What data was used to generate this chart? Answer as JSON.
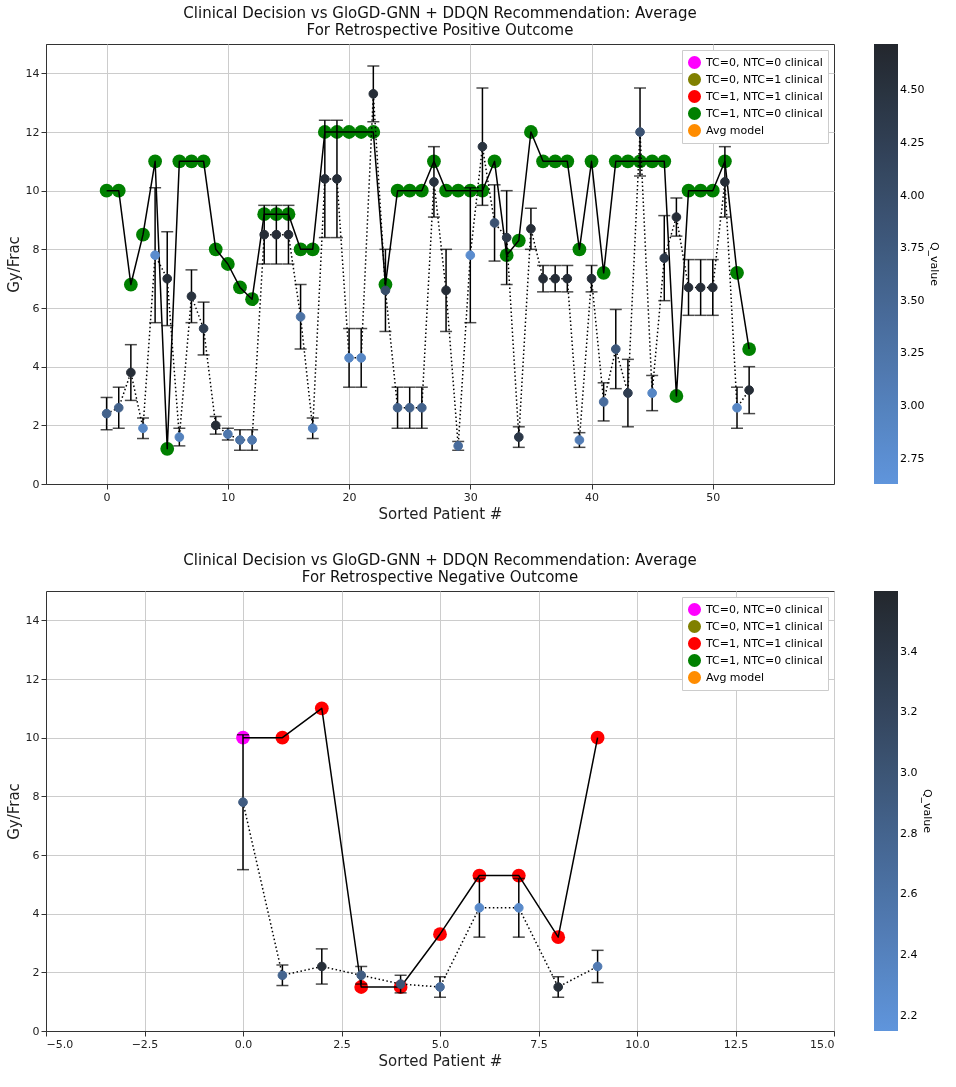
{
  "chart_data": [
    {
      "type": "scatter",
      "title": "Clinical Decision vs GloGD-GNN + DDQN Recommendation: Average\nFor Retrospective Positive Outcome",
      "xlabel": "Sorted Patient #",
      "ylabel": "Gy/Frac",
      "clabel": "Q_value",
      "x": [
        0,
        1,
        2,
        3,
        4,
        5,
        6,
        7,
        8,
        9,
        10,
        11,
        12,
        13,
        14,
        15,
        16,
        17,
        18,
        19,
        20,
        21,
        22,
        23,
        24,
        25,
        26,
        27,
        28,
        29,
        30,
        31,
        32,
        33,
        34,
        35,
        36,
        37,
        38,
        39,
        40,
        41,
        42,
        43,
        44,
        45,
        46,
        47,
        48,
        49,
        50,
        51,
        52,
        53
      ],
      "xlim": [
        -5,
        60
      ],
      "xticks": [
        0,
        10,
        20,
        30,
        40,
        50
      ],
      "ylim": [
        0,
        15
      ],
      "yticks": [
        0,
        2,
        4,
        6,
        8,
        10,
        12,
        14
      ],
      "clim": [
        2.63,
        4.72
      ],
      "cticks": [
        {
          "value": 2.75,
          "label": "2.75"
        },
        {
          "value": 3,
          "label": "3.00"
        },
        {
          "value": 3.25,
          "label": "3.25"
        },
        {
          "value": 3.5,
          "label": "3.50"
        },
        {
          "value": 3.75,
          "label": "3.75"
        },
        {
          "value": 4,
          "label": "4.00"
        },
        {
          "value": 4.25,
          "label": "4.25"
        },
        {
          "value": 4.5,
          "label": "4.50"
        }
      ],
      "grid": true,
      "legend": "top right",
      "series": [
        {
          "type": "line",
          "color": "#000000",
          "marker": "none",
          "line_style": "solid",
          "values": [
            10,
            10,
            6.8,
            8.5,
            11,
            1.2,
            11,
            11,
            11,
            8,
            7.5,
            6.7,
            6.3,
            9.2,
            9.2,
            9.2,
            8,
            8,
            12,
            12,
            12,
            12,
            12,
            6.8,
            10,
            10,
            10,
            11,
            10,
            10,
            10,
            10,
            11,
            7.8,
            8.3,
            12,
            11,
            11,
            11,
            8,
            11,
            7.2,
            11,
            11,
            11,
            11,
            11,
            3,
            10,
            10,
            10,
            11,
            7.2,
            4.6
          ]
        },
        {
          "name": "TC=0, NTC=0 clinical",
          "color": "#ff00ff",
          "marker": "circle",
          "values": [
            null,
            null,
            null,
            null,
            null,
            null,
            null,
            null,
            null,
            null,
            null,
            null,
            null,
            null,
            null,
            null,
            null,
            null,
            null,
            null,
            null,
            null,
            null,
            null,
            null,
            null,
            null,
            null,
            null,
            null,
            null,
            null,
            null,
            null,
            null,
            null,
            null,
            null,
            null,
            null,
            null,
            null,
            null,
            null,
            null,
            null,
            null,
            null,
            null,
            null,
            null,
            null,
            null,
            null
          ]
        },
        {
          "name": "TC=0, NTC=1 clinical",
          "color": "#808000",
          "marker": "circle",
          "values": [
            null,
            null,
            null,
            null,
            null,
            null,
            null,
            null,
            null,
            null,
            null,
            null,
            null,
            null,
            null,
            null,
            null,
            null,
            null,
            null,
            null,
            null,
            null,
            null,
            null,
            null,
            null,
            null,
            null,
            null,
            null,
            null,
            null,
            null,
            null,
            null,
            null,
            null,
            null,
            null,
            null,
            null,
            null,
            null,
            null,
            null,
            null,
            null,
            null,
            null,
            null,
            null,
            null,
            null
          ]
        },
        {
          "name": "TC=1, NTC=1 clinical",
          "color": "#ff0000",
          "marker": "circle",
          "values": [
            null,
            null,
            null,
            null,
            null,
            null,
            null,
            null,
            null,
            null,
            null,
            null,
            null,
            null,
            null,
            null,
            null,
            null,
            null,
            null,
            null,
            null,
            null,
            null,
            null,
            null,
            null,
            null,
            null,
            null,
            null,
            null,
            null,
            null,
            null,
            null,
            null,
            null,
            null,
            null,
            null,
            null,
            null,
            null,
            null,
            null,
            null,
            null,
            null,
            null,
            null,
            null,
            null,
            null
          ]
        },
        {
          "name": "TC=1, NTC=0 clinical",
          "color": "#008000",
          "marker": "circle",
          "values": [
            10,
            10,
            6.8,
            8.5,
            11,
            1.2,
            11,
            11,
            11,
            8,
            7.5,
            6.7,
            6.3,
            9.2,
            9.2,
            9.2,
            8,
            8,
            12,
            12,
            12,
            12,
            12,
            6.8,
            10,
            10,
            10,
            11,
            10,
            10,
            10,
            10,
            11,
            7.8,
            8.3,
            12,
            11,
            11,
            11,
            8,
            11,
            7.2,
            11,
            11,
            11,
            11,
            11,
            3,
            10,
            10,
            10,
            11,
            7.2,
            4.6
          ]
        },
        {
          "name": "Avg model",
          "color": "#ff8c00",
          "marker": "circle",
          "values": [
            null,
            null,
            null,
            null,
            null,
            null,
            null,
            null,
            null,
            null,
            null,
            null,
            null,
            null,
            null,
            null,
            null,
            null,
            null,
            null,
            null,
            null,
            null,
            null,
            null,
            null,
            null,
            null,
            null,
            null,
            null,
            null,
            null,
            null,
            null,
            null,
            null,
            null,
            null,
            null,
            null,
            null,
            null,
            null,
            null,
            null,
            null,
            null,
            null,
            null,
            null,
            null,
            null,
            null
          ]
        },
        {
          "type": "line",
          "color": "#000000",
          "marker": "none",
          "line_style": "dotted",
          "values": [
            2.4,
            2.6,
            3.8,
            1.9,
            7.8,
            7.0,
            1.6,
            6.4,
            5.3,
            2.0,
            1.7,
            1.5,
            1.5,
            8.5,
            8.5,
            8.5,
            5.7,
            1.9,
            10.4,
            10.4,
            4.3,
            4.3,
            13.3,
            6.6,
            2.6,
            2.6,
            2.6,
            10.3,
            6.6,
            1.3,
            7.8,
            11.5,
            8.9,
            8.4,
            1.6,
            8.7,
            7.0,
            7.0,
            7.0,
            1.5,
            7.0,
            2.8,
            4.6,
            3.1,
            12.0,
            3.1,
            7.7,
            9.1,
            6.7,
            6.7,
            6.7,
            10.3,
            2.6,
            3.2
          ]
        },
        {
          "type": "scatter",
          "marker": "circle",
          "values": [
            2.4,
            2.6,
            3.8,
            1.9,
            7.8,
            7.0,
            1.6,
            6.4,
            5.3,
            2.0,
            1.7,
            1.5,
            1.5,
            8.5,
            8.5,
            8.5,
            5.7,
            1.9,
            10.4,
            10.4,
            4.3,
            4.3,
            13.3,
            6.6,
            2.6,
            2.6,
            2.6,
            10.3,
            6.6,
            1.3,
            7.8,
            11.5,
            8.9,
            8.4,
            1.6,
            8.7,
            7.0,
            7.0,
            7.0,
            1.5,
            7.0,
            2.8,
            4.6,
            3.1,
            12.0,
            3.1,
            7.7,
            9.1,
            6.7,
            6.7,
            6.7,
            10.3,
            2.6,
            3.2
          ],
          "errors": [
            0.55,
            0.7,
            0.95,
            0.35,
            2.3,
            1.6,
            0.3,
            0.9,
            0.9,
            0.3,
            0.2,
            0.35,
            0.35,
            1,
            1,
            1,
            1.1,
            0.35,
            2,
            2,
            1,
            1,
            0.95,
            1.4,
            0.7,
            0.7,
            0.7,
            1.2,
            1.4,
            0.15,
            2.3,
            2,
            1.3,
            1.6,
            0.35,
            0.7,
            0.45,
            0.45,
            0.45,
            0.25,
            0.45,
            0.65,
            1.35,
            1.15,
            1.5,
            0.6,
            1.45,
            0.65,
            0.95,
            0.95,
            0.95,
            1.2,
            0.7,
            0.8
          ],
          "colors": [
            "#43628b",
            "#43628b",
            "#262d37",
            "#5787c5",
            "#5a8cce",
            "#262d37",
            "#5482bd",
            "#29333f",
            "#2f3d50",
            "#262d37",
            "#4f77ac",
            "#4c72a4",
            "#4f77ac",
            "#262d37",
            "#262d37",
            "#262d37",
            "#4c72a4",
            "#5482bd",
            "#262d37",
            "#262d37",
            "#5787c5",
            "#5787c5",
            "#262d37",
            "#384d69",
            "#43628b",
            "#43628b",
            "#43628b",
            "#29333f",
            "#262d37",
            "#496c9c",
            "#5a8cce",
            "#29333f",
            "#3b5272",
            "#2c3848",
            "#2c3848",
            "#262d37",
            "#262d37",
            "#262d37",
            "#262d37",
            "#527cb5",
            "#262d37",
            "#496c9c",
            "#3d577a",
            "#2f3d50",
            "#3b5272",
            "#5787c5",
            "#2c3848",
            "#262d37",
            "#262d37",
            "#262d37",
            "#262d37",
            "#262d37",
            "#5787c5",
            "#262d37"
          ],
          "cvalues": [
            3.6,
            3.6,
            4.6,
            2.9,
            2.8,
            4.6,
            3.0,
            4.5,
            4.3,
            4.6,
            3.2,
            3.3,
            3.2,
            4.6,
            4.6,
            4.6,
            3.3,
            3.0,
            4.6,
            4.6,
            2.9,
            2.9,
            4.6,
            4.0,
            3.6,
            3.6,
            3.6,
            4.5,
            4.6,
            3.4,
            2.8,
            4.5,
            3.9,
            4.4,
            4.4,
            4.6,
            4.6,
            4.6,
            4.6,
            3.1,
            4.6,
            3.4,
            3.8,
            4.3,
            3.9,
            2.9,
            4.4,
            4.6,
            4.6,
            4.6,
            4.6,
            4.6,
            2.9,
            4.6
          ]
        }
      ]
    },
    {
      "type": "scatter",
      "title": "Clinical Decision vs GloGD-GNN + DDQN Recommendation: Average\nFor Retrospective Negative Outcome",
      "xlabel": "Sorted Patient #",
      "ylabel": "Gy/Frac",
      "clabel": "Q_value",
      "x": [
        0,
        1,
        2,
        3,
        4,
        5,
        6,
        7,
        8,
        9
      ],
      "xlim": [
        -5,
        15
      ],
      "xticks": [
        {
          "value": -5,
          "label": "−5.0"
        },
        {
          "value": -2.5,
          "label": "−2.5"
        },
        {
          "value": 0,
          "label": "0.0"
        },
        {
          "value": 2.5,
          "label": "2.5"
        },
        {
          "value": 5,
          "label": "5.0"
        },
        {
          "value": 7.5,
          "label": "7.5"
        },
        {
          "value": 10,
          "label": "10.0"
        },
        {
          "value": 12.5,
          "label": "12.5"
        },
        {
          "value": 15,
          "label": "15.0"
        }
      ],
      "ylim": [
        0,
        15
      ],
      "yticks": [
        0,
        2,
        4,
        6,
        8,
        10,
        12,
        14
      ],
      "clim": [
        2.15,
        3.6
      ],
      "cticks": [
        2.2,
        2.4,
        2.6,
        2.8,
        {
          "value": 3,
          "label": "3.0"
        },
        3.2,
        3.4
      ],
      "grid": true,
      "legend": "top right",
      "series": [
        {
          "type": "line",
          "color": "#000000",
          "marker": "none",
          "line_style": "solid",
          "values": [
            10,
            10,
            11,
            1.5,
            1.5,
            3.3,
            5.3,
            5.3,
            3.2,
            10
          ]
        },
        {
          "name": "TC=0, NTC=0 clinical",
          "color": "#ff00ff",
          "marker": "circle",
          "values": [
            10,
            null,
            null,
            null,
            null,
            null,
            null,
            null,
            null,
            null
          ]
        },
        {
          "name": "TC=0, NTC=1 clinical",
          "color": "#808000",
          "marker": "circle",
          "values": [
            null,
            null,
            null,
            null,
            null,
            null,
            null,
            null,
            null,
            null
          ]
        },
        {
          "name": "TC=1, NTC=1 clinical",
          "color": "#ff0000",
          "marker": "circle",
          "values": [
            null,
            10,
            11,
            1.5,
            1.5,
            3.3,
            5.3,
            5.3,
            3.2,
            10
          ]
        },
        {
          "name": "TC=1, NTC=0 clinical",
          "color": "#008000",
          "marker": "circle",
          "values": [
            null,
            null,
            null,
            null,
            null,
            null,
            null,
            null,
            null,
            null
          ]
        },
        {
          "name": "Avg model",
          "color": "#ff8c00",
          "marker": "circle",
          "values": [
            null,
            null,
            null,
            null,
            null,
            null,
            null,
            null,
            null,
            null
          ]
        },
        {
          "type": "line",
          "color": "#000000",
          "marker": "none",
          "line_style": "dotted",
          "values": [
            7.8,
            1.9,
            2.2,
            1.9,
            1.6,
            1.5,
            4.2,
            4.2,
            1.5,
            2.2
          ]
        },
        {
          "type": "scatter",
          "marker": "circle",
          "values": [
            7.8,
            1.9,
            2.2,
            1.9,
            1.6,
            1.5,
            4.2,
            4.2,
            1.5,
            2.2
          ],
          "errors": [
            2.3,
            0.35,
            0.6,
            0.3,
            0.3,
            0.35,
            1,
            1,
            0.35,
            0.55
          ],
          "colors": [
            "#405c81",
            "#44648e",
            "#272f39",
            "#405c81",
            "#3c5575",
            "#486b9a",
            "#598aca",
            "#598aca",
            "#272f39",
            "#517ab2"
          ],
          "cvalues": [
            2.9,
            2.8,
            3.5,
            2.9,
            3.0,
            2.7,
            2.3,
            2.3,
            3.5,
            2.5
          ]
        }
      ]
    }
  ]
}
